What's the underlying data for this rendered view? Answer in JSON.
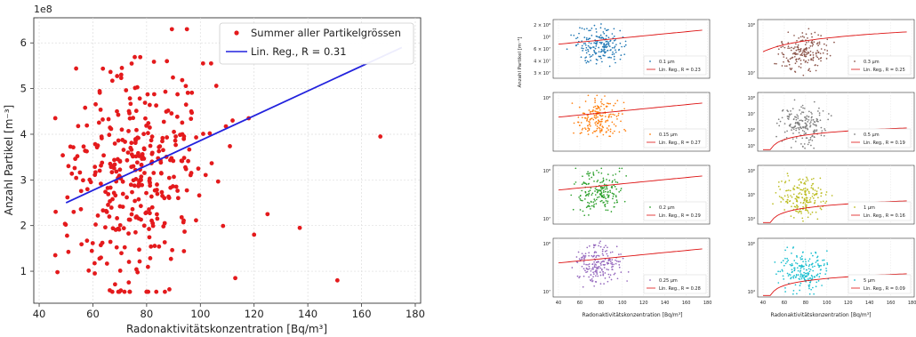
{
  "chart_data": [
    {
      "type": "scatter",
      "title": "",
      "xlabel": "Radonaktivitätskonzentration [Bq/m³]",
      "ylabel": "Anzahl Partikel [m⁻³]",
      "y_offset_label": "1e8",
      "xlim": [
        38,
        182
      ],
      "ylim": [
        0.3,
        6.55
      ],
      "xticks": [
        40,
        60,
        80,
        100,
        120,
        140,
        160,
        180
      ],
      "yticks": [
        1,
        2,
        3,
        4,
        5,
        6
      ],
      "grid": true,
      "legend_position": "top-right",
      "legend": [
        "Summer aller Partikelgrössen",
        "Lin. Reg., R = 0.31"
      ],
      "series": [
        {
          "name": "Summer aller Partikelgrössen",
          "color": "#e41a1c",
          "kind": "points",
          "approx_count": 360,
          "x_range": [
            46,
            167
          ],
          "y_range": [
            0.55,
            6.3
          ],
          "x_center": 76,
          "y_center": 3.0
        },
        {
          "name": "Lin. Reg., R = 0.31",
          "color": "#2222dd",
          "kind": "line",
          "x": [
            50,
            175
          ],
          "y": [
            2.5,
            5.9
          ]
        }
      ]
    },
    {
      "type": "scatter",
      "subplots_grid": [
        4,
        2
      ],
      "xlabel": "Radonaktivitätskonzentration [Bq/m³]",
      "ylabel": "Anzahl Partikel [m⁻³]",
      "xlim": [
        35,
        182
      ],
      "xticks": [
        40,
        60,
        80,
        100,
        120,
        140,
        160,
        180
      ],
      "fit_color": "#dd1111",
      "panels": [
        {
          "legend": [
            "0.1 µm",
            "Lin. Reg., R = 0.23"
          ],
          "color": "#1f77b4",
          "ytick_labels": [
            "2 × 10⁸",
            "10⁸",
            "6 × 10⁷",
            "4 × 10⁷",
            "3 × 10⁷"
          ]
        },
        {
          "legend": [
            "0.3 µm",
            "Lin. Reg., R = 0.25"
          ],
          "color": "#8c564b",
          "ytick_labels": [
            "10⁸",
            "10⁷"
          ]
        },
        {
          "legend": [
            "0.15 µm",
            "Lin. Reg., R = 0.27"
          ],
          "color": "#ff7f0e",
          "ytick_labels": [
            "10⁸"
          ]
        },
        {
          "legend": [
            "0.5 µm",
            "Lin. Reg., R = 0.19"
          ],
          "color": "#7f7f7f",
          "ytick_labels": [
            "10⁸",
            "10⁷",
            "10⁶",
            "10⁵"
          ]
        },
        {
          "legend": [
            "0.2 µm",
            "Lin. Reg., R = 0.29"
          ],
          "color": "#2ca02c",
          "ytick_labels": [
            "10⁸",
            "10⁷"
          ]
        },
        {
          "legend": [
            "1 µm",
            "Lin. Reg., R = 0.16"
          ],
          "color": "#bcbd22",
          "ytick_labels": [
            "10⁶",
            "10⁵",
            "10⁴"
          ]
        },
        {
          "legend": [
            "0.25 µm",
            "Lin. Reg., R = 0.28"
          ],
          "color": "#9467bd",
          "ytick_labels": [
            "10⁸",
            "10⁷"
          ]
        },
        {
          "legend": [
            "5 µm",
            "Lin. Reg., R = 0.09"
          ],
          "color": "#17becf",
          "ytick_labels": [
            "10⁶",
            "10⁴"
          ]
        }
      ]
    }
  ]
}
